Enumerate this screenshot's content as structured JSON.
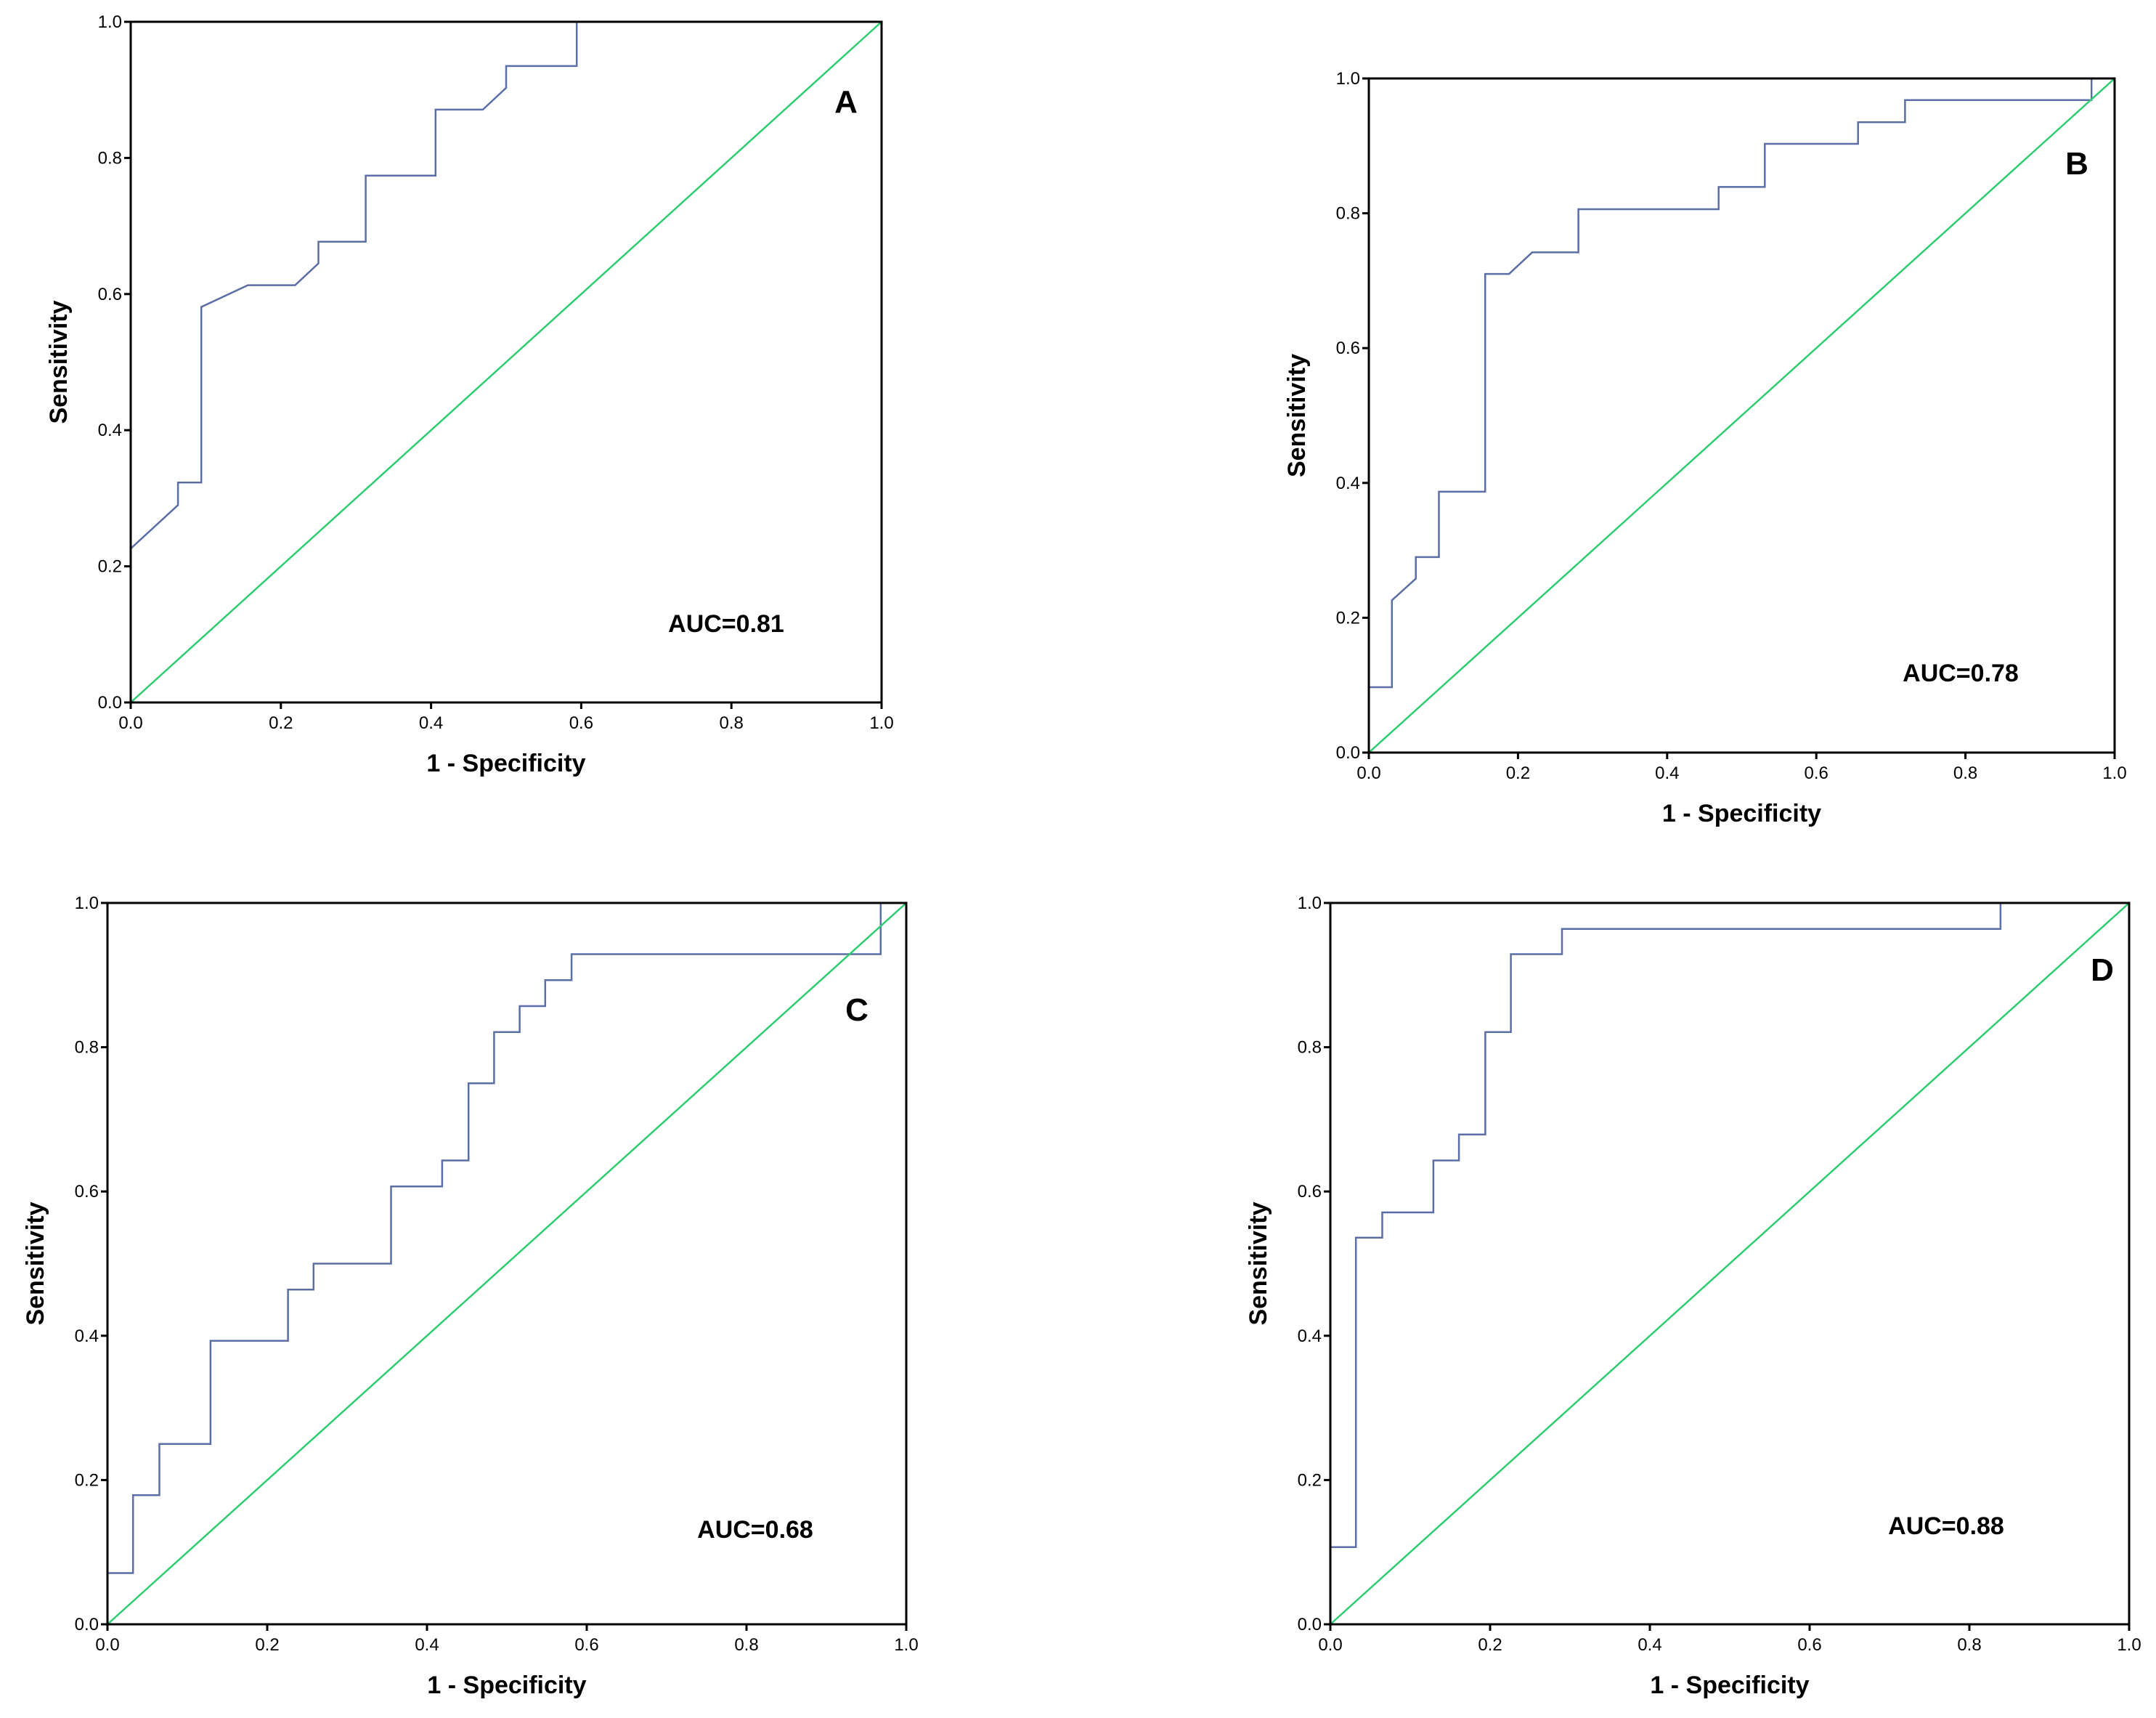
{
  "chart_data": [
    {
      "type": "line",
      "panel": "A",
      "title": "",
      "auc_label": "AUC=0.81",
      "xlabel": "1 - Specificity",
      "ylabel": "Sensitivity",
      "xlim": [
        0,
        1
      ],
      "ylim": [
        0,
        1
      ],
      "xticks": [
        "0.0",
        "0.2",
        "0.4",
        "0.6",
        "0.8",
        "1.0"
      ],
      "yticks": [
        "0.0",
        "0.2",
        "0.4",
        "0.6",
        "0.8",
        "1.0"
      ],
      "series": [
        {
          "name": "ROC curve",
          "color": "#5b6ea6",
          "points": [
            [
              0,
              0.226
            ],
            [
              0.063,
              0.29
            ],
            [
              0.063,
              0.323
            ],
            [
              0.094,
              0.323
            ],
            [
              0.094,
              0.581
            ],
            [
              0.156,
              0.613
            ],
            [
              0.219,
              0.613
            ],
            [
              0.25,
              0.645
            ],
            [
              0.25,
              0.677
            ],
            [
              0.313,
              0.677
            ],
            [
              0.313,
              0.774
            ],
            [
              0.406,
              0.774
            ],
            [
              0.406,
              0.871
            ],
            [
              0.469,
              0.871
            ],
            [
              0.5,
              0.903
            ],
            [
              0.5,
              0.935
            ],
            [
              0.594,
              0.935
            ],
            [
              0.594,
              1.0
            ],
            [
              1.0,
              1.0
            ]
          ]
        },
        {
          "name": "Reference line",
          "color": "#2ecc71",
          "points": [
            [
              0,
              0
            ],
            [
              1,
              1
            ]
          ]
        }
      ]
    },
    {
      "type": "line",
      "panel": "B",
      "title": "",
      "auc_label": "AUC=0.78",
      "xlabel": "1 - Specificity",
      "ylabel": "Sensitivity",
      "xlim": [
        0,
        1
      ],
      "ylim": [
        0,
        1
      ],
      "xticks": [
        "0.0",
        "0.2",
        "0.4",
        "0.6",
        "0.8",
        "1.0"
      ],
      "yticks": [
        "0.0",
        "0.2",
        "0.4",
        "0.6",
        "0.8",
        "1.0"
      ],
      "series": [
        {
          "name": "ROC curve",
          "color": "#5b6ea6",
          "points": [
            [
              0,
              0
            ],
            [
              0,
              0.097
            ],
            [
              0.031,
              0.097
            ],
            [
              0.031,
              0.226
            ],
            [
              0.063,
              0.258
            ],
            [
              0.063,
              0.29
            ],
            [
              0.094,
              0.29
            ],
            [
              0.094,
              0.387
            ],
            [
              0.156,
              0.387
            ],
            [
              0.156,
              0.71
            ],
            [
              0.188,
              0.71
            ],
            [
              0.219,
              0.742
            ],
            [
              0.281,
              0.742
            ],
            [
              0.281,
              0.806
            ],
            [
              0.469,
              0.806
            ],
            [
              0.469,
              0.839
            ],
            [
              0.531,
              0.839
            ],
            [
              0.531,
              0.903
            ],
            [
              0.656,
              0.903
            ],
            [
              0.656,
              0.935
            ],
            [
              0.719,
              0.935
            ],
            [
              0.719,
              0.968
            ],
            [
              0.969,
              0.968
            ],
            [
              0.969,
              1.0
            ],
            [
              1.0,
              1.0
            ]
          ]
        },
        {
          "name": "Reference line",
          "color": "#2ecc71",
          "points": [
            [
              0,
              0
            ],
            [
              1,
              1
            ]
          ]
        }
      ]
    },
    {
      "type": "line",
      "panel": "C",
      "title": "",
      "auc_label": "AUC=0.68",
      "xlabel": "1 - Specificity",
      "ylabel": "Sensitivity",
      "xlim": [
        0,
        1
      ],
      "ylim": [
        0,
        1
      ],
      "xticks": [
        "0.0",
        "0.2",
        "0.4",
        "0.6",
        "0.8",
        "1.0"
      ],
      "yticks": [
        "0.0",
        "0.2",
        "0.4",
        "0.6",
        "0.8",
        "1.0"
      ],
      "series": [
        {
          "name": "ROC curve",
          "color": "#5b6ea6",
          "points": [
            [
              0,
              0.071
            ],
            [
              0.032,
              0.071
            ],
            [
              0.032,
              0.179
            ],
            [
              0.065,
              0.179
            ],
            [
              0.065,
              0.25
            ],
            [
              0.129,
              0.25
            ],
            [
              0.129,
              0.393
            ],
            [
              0.226,
              0.393
            ],
            [
              0.226,
              0.464
            ],
            [
              0.258,
              0.464
            ],
            [
              0.258,
              0.5
            ],
            [
              0.355,
              0.5
            ],
            [
              0.355,
              0.607
            ],
            [
              0.419,
              0.607
            ],
            [
              0.419,
              0.643
            ],
            [
              0.452,
              0.643
            ],
            [
              0.452,
              0.75
            ],
            [
              0.484,
              0.75
            ],
            [
              0.484,
              0.821
            ],
            [
              0.516,
              0.821
            ],
            [
              0.516,
              0.857
            ],
            [
              0.548,
              0.857
            ],
            [
              0.548,
              0.893
            ],
            [
              0.581,
              0.893
            ],
            [
              0.581,
              0.929
            ],
            [
              0.968,
              0.929
            ],
            [
              0.968,
              1.0
            ],
            [
              1.0,
              1.0
            ]
          ]
        },
        {
          "name": "Reference line",
          "color": "#2ecc71",
          "points": [
            [
              0,
              0
            ],
            [
              1,
              1
            ]
          ]
        }
      ]
    },
    {
      "type": "line",
      "panel": "D",
      "title": "",
      "auc_label": "AUC=0.88",
      "xlabel": "1 - Specificity",
      "ylabel": "Sensitivity",
      "xlim": [
        0,
        1
      ],
      "ylim": [
        0,
        1
      ],
      "xticks": [
        "0.0",
        "0.2",
        "0.4",
        "0.6",
        "0.8",
        "1.0"
      ],
      "yticks": [
        "0.0",
        "0.2",
        "0.4",
        "0.6",
        "0.8",
        "1.0"
      ],
      "series": [
        {
          "name": "ROC curve",
          "color": "#5b6ea6",
          "points": [
            [
              0,
              0
            ],
            [
              0,
              0.107
            ],
            [
              0.032,
              0.107
            ],
            [
              0.032,
              0.536
            ],
            [
              0.065,
              0.536
            ],
            [
              0.065,
              0.571
            ],
            [
              0.129,
              0.571
            ],
            [
              0.129,
              0.643
            ],
            [
              0.161,
              0.643
            ],
            [
              0.161,
              0.679
            ],
            [
              0.194,
              0.679
            ],
            [
              0.194,
              0.821
            ],
            [
              0.226,
              0.821
            ],
            [
              0.226,
              0.929
            ],
            [
              0.29,
              0.929
            ],
            [
              0.29,
              0.964
            ],
            [
              0.839,
              0.964
            ],
            [
              0.839,
              1.0
            ],
            [
              1.0,
              1.0
            ]
          ]
        },
        {
          "name": "Reference line",
          "color": "#2ecc71",
          "points": [
            [
              0,
              0
            ],
            [
              1,
              1
            ]
          ]
        }
      ]
    }
  ]
}
